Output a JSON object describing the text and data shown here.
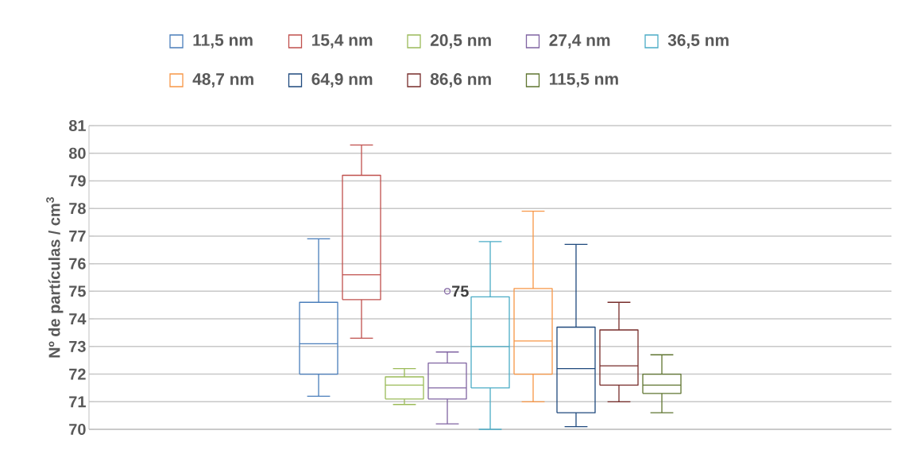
{
  "chart_data": {
    "type": "box",
    "ylabel": "Nº de partículas / cm$^{3}$",
    "categories": [
      null
    ],
    "ylim": [
      70,
      81
    ],
    "yticks": [
      70,
      71,
      72,
      73,
      74,
      75,
      76,
      77,
      78,
      79,
      80,
      81
    ],
    "grid": "y",
    "legend": "top",
    "annotations": [
      "75"
    ],
    "series": [
      {
        "name": "11,5 nm",
        "color": "#4a7ebb",
        "boxes": [
          {
            "low": 71.2,
            "q1": 72.0,
            "median": 73.1,
            "q3": 74.6,
            "high": 76.9
          }
        ]
      },
      {
        "name": "15,4 nm",
        "color": "#c0504d",
        "boxes": [
          {
            "low": 73.3,
            "q1": 74.7,
            "median": 75.6,
            "q3": 79.2,
            "high": 80.3
          }
        ]
      },
      {
        "name": "20,5 nm",
        "color": "#9bbb59",
        "boxes": [
          {
            "low": 70.9,
            "q1": 71.1,
            "median": 71.6,
            "q3": 71.9,
            "high": 72.2
          }
        ]
      },
      {
        "name": "27,4 nm",
        "color": "#8064a2",
        "boxes": [
          {
            "low": 70.2,
            "q1": 71.1,
            "median": 71.5,
            "q3": 72.4,
            "high": 72.8,
            "outliers": [
              75
            ]
          }
        ]
      },
      {
        "name": "36,5 nm",
        "color": "#4bacc6",
        "boxes": [
          {
            "low": 70.0,
            "q1": 71.5,
            "median": 73.0,
            "q3": 74.8,
            "high": 76.8
          }
        ]
      },
      {
        "name": "48,7 nm",
        "color": "#f79646",
        "boxes": [
          {
            "low": 71.0,
            "q1": 72.0,
            "median": 73.2,
            "q3": 75.1,
            "high": 77.9
          }
        ]
      },
      {
        "name": "64,9 nm",
        "color": "#1f497d",
        "boxes": [
          {
            "low": 70.1,
            "q1": 70.6,
            "median": 72.2,
            "q3": 73.7,
            "high": 76.7
          }
        ]
      },
      {
        "name": "86,6 nm",
        "color": "#772c2a",
        "boxes": [
          {
            "low": 71.0,
            "q1": 71.6,
            "median": 72.3,
            "q3": 73.6,
            "high": 74.6
          }
        ]
      },
      {
        "name": "115,5 nm",
        "color": "#5f7530",
        "boxes": [
          {
            "low": 70.6,
            "q1": 71.3,
            "median": 71.6,
            "q3": 72.0,
            "high": 72.7
          }
        ]
      }
    ]
  }
}
